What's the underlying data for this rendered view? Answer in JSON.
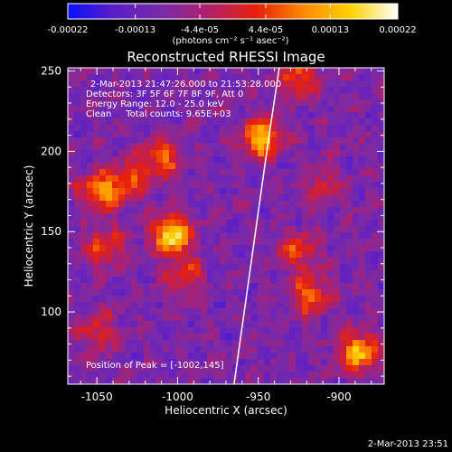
{
  "chart_data": {
    "type": "heatmap",
    "title": "Reconstructed RHESSI Image",
    "xlabel": "Heliocentric X (arcsec)",
    "ylabel": "Heliocentric Y (arcsec)",
    "xlim": [
      -1068,
      -872
    ],
    "ylim": [
      55,
      252
    ],
    "xticks": [
      -1050,
      -1000,
      -950,
      -900
    ],
    "xtick_labels": [
      "-1050",
      "-1000",
      "-950",
      "-900"
    ],
    "yticks": [
      100,
      150,
      200,
      250
    ],
    "ytick_labels": [
      "100",
      "150",
      "200",
      "250"
    ],
    "colorbar": {
      "ticks": [
        -0.00022,
        -0.00013,
        -4.4e-05,
        4.4e-05,
        0.00013,
        0.00022
      ],
      "tick_labels": [
        "-0.00022",
        "-0.00013",
        "-4.4e-05",
        "4.4e-05",
        "0.00013",
        "0.00022"
      ],
      "range": [
        -0.00022,
        0.00022
      ],
      "unit_label": "(photons cm⁻² s⁻¹ asec⁻²)",
      "colors": [
        "#0a10ff",
        "#5a1ec8",
        "#7a2aa8",
        "#b0206a",
        "#e8200a",
        "#ff8800",
        "#ffd200",
        "#ffffff"
      ]
    },
    "annotations": {
      "time_range": "2-Mar-2013 21:47:26.000 to 21:53:28.000",
      "detectors": "Detectors: 3F 5F 6F 7F 8F 9F, Att 0",
      "energy_range": "Energy Range: 12.0 - 25.0 keV",
      "clean_counts": "Clean     Total counts: 9.65E+03",
      "peak_position": "Position of Peak = [-1002,145]"
    },
    "limb_x": [
      -965,
      -958,
      -951,
      -944,
      -937
    ],
    "limb_y": [
      55,
      105,
      155,
      205,
      252
    ],
    "hotspots": [
      {
        "x": -1048,
        "y": 175,
        "v": 0.7
      },
      {
        "x": -1030,
        "y": 182,
        "v": 0.5
      },
      {
        "x": -1003,
        "y": 148,
        "v": 1.0
      },
      {
        "x": -1010,
        "y": 195,
        "v": 0.6
      },
      {
        "x": -995,
        "y": 122,
        "v": 0.45
      },
      {
        "x": -948,
        "y": 208,
        "v": 0.85
      },
      {
        "x": -918,
        "y": 110,
        "v": 0.6
      },
      {
        "x": -925,
        "y": 138,
        "v": 0.5
      },
      {
        "x": -888,
        "y": 75,
        "v": 0.85
      },
      {
        "x": -925,
        "y": 245,
        "v": 0.55
      },
      {
        "x": -1045,
        "y": 140,
        "v": 0.5
      },
      {
        "x": -910,
        "y": 178,
        "v": 0.35
      },
      {
        "x": -1050,
        "y": 88,
        "v": 0.4
      }
    ]
  },
  "footer": {
    "timestamp": "2-Mar-2013 23:51"
  }
}
